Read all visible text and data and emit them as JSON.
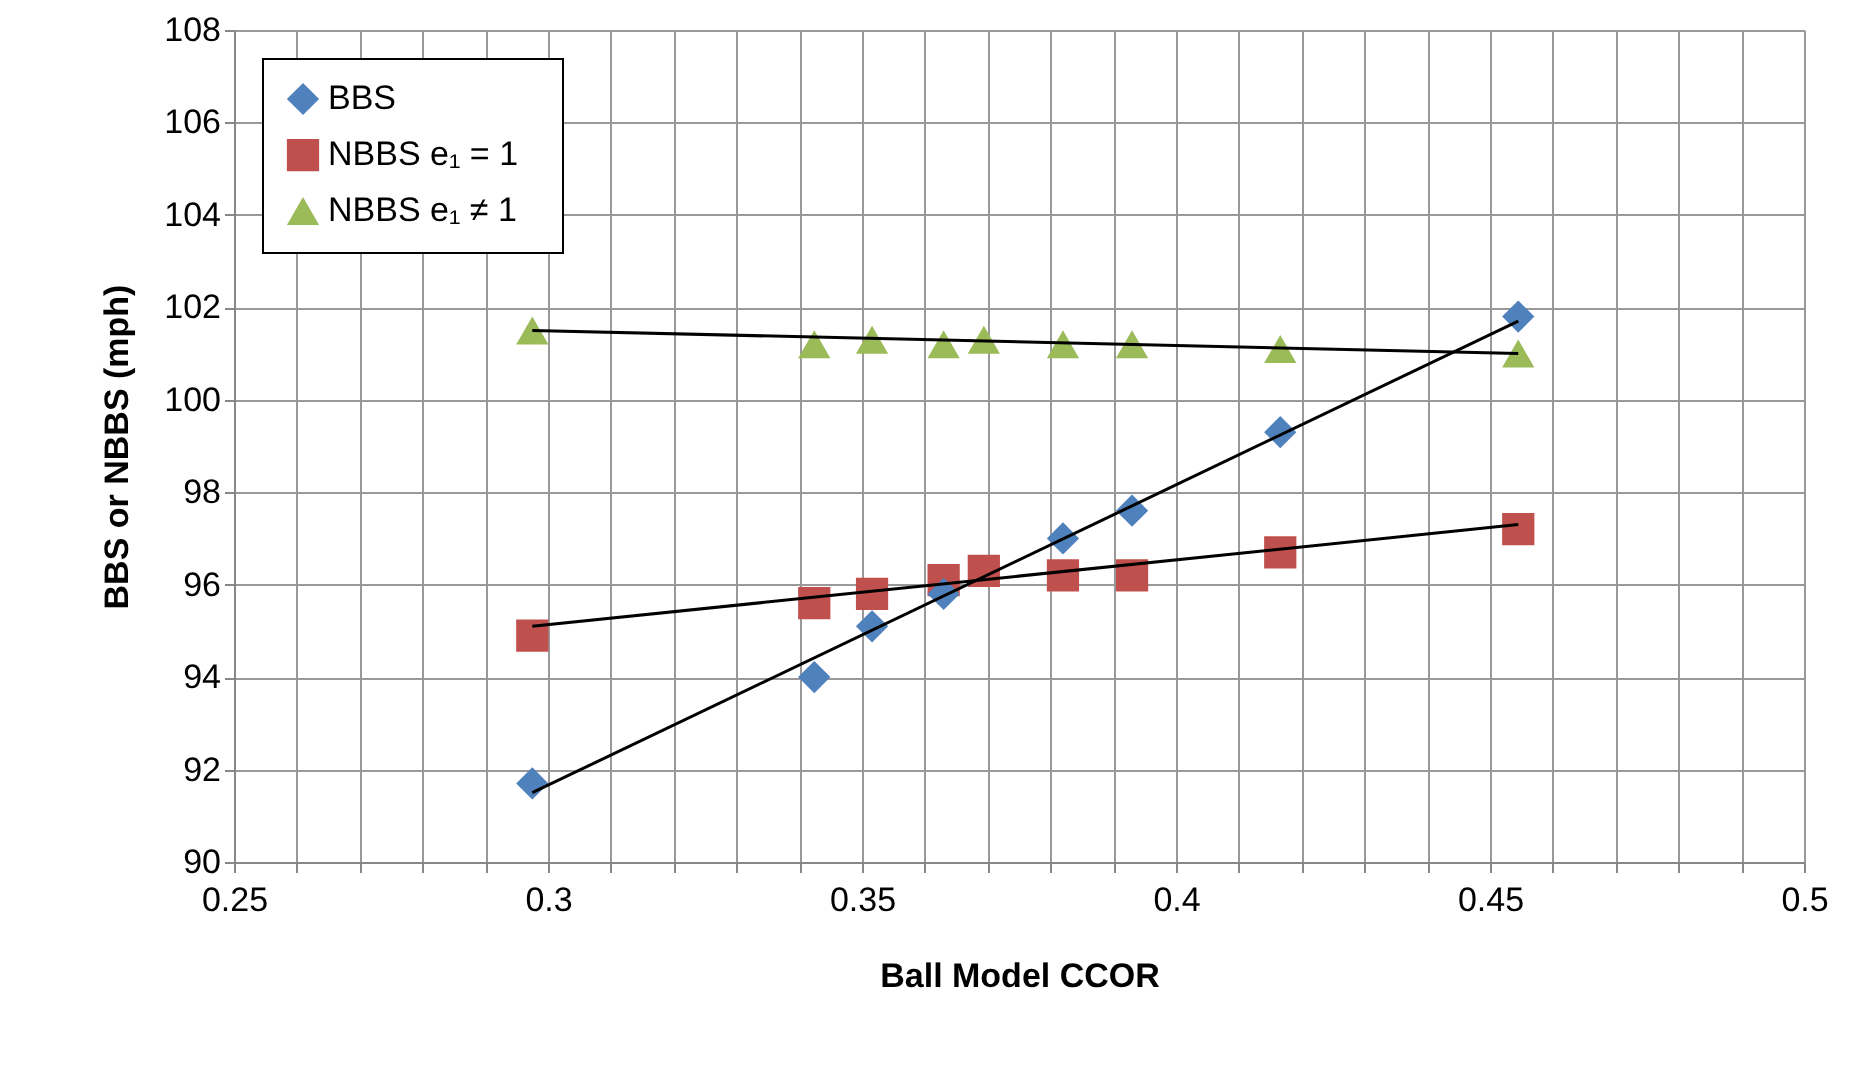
{
  "chart_data": {
    "type": "scatter",
    "xlabel": "Ball Model CCOR",
    "ylabel": "BBS or NBBS (mph)",
    "xlim": [
      0.25,
      0.5
    ],
    "ylim": [
      90,
      108
    ],
    "xticks": [
      0.25,
      {
        "value": 0.26,
        "label": null
      },
      {
        "value": 0.27,
        "label": null
      },
      {
        "value": 0.28,
        "label": null
      },
      {
        "value": 0.29,
        "label": null
      },
      0.3,
      {
        "value": 0.31,
        "label": null
      },
      {
        "value": 0.32,
        "label": null
      },
      {
        "value": 0.33,
        "label": null
      },
      {
        "value": 0.34,
        "label": null
      },
      0.35,
      {
        "value": 0.36,
        "label": null
      },
      {
        "value": 0.37,
        "label": null
      },
      {
        "value": 0.38,
        "label": null
      },
      {
        "value": 0.39,
        "label": null
      },
      0.4,
      {
        "value": 0.41,
        "label": null
      },
      {
        "value": 0.42,
        "label": null
      },
      {
        "value": 0.43,
        "label": null
      },
      {
        "value": 0.44,
        "label": null
      },
      0.45,
      {
        "value": 0.46,
        "label": null
      },
      {
        "value": 0.47,
        "label": null
      },
      {
        "value": 0.48,
        "label": null
      },
      {
        "value": 0.49,
        "label": null
      },
      0.5
    ],
    "yticks": [
      90,
      92,
      94,
      96,
      98,
      100,
      102,
      104,
      106,
      108
    ],
    "grid": true,
    "legend": "top left",
    "series": [
      {
        "name": "BBS",
        "color": "#4f81bd",
        "marker": "diamond",
        "x": [
          0.2975,
          0.3424,
          0.3516,
          0.363,
          0.382,
          0.393,
          0.4166,
          0.4545
        ],
        "values": [
          91.7,
          94.0,
          95.1,
          95.8,
          97.0,
          97.6,
          99.3,
          101.8
        ]
      },
      {
        "name": "NBBS   e₁ = 1",
        "color": "#c0504d",
        "marker": "square",
        "x": [
          0.2975,
          0.3424,
          0.3516,
          0.363,
          0.3694,
          0.382,
          0.393,
          0.4166,
          0.4545
        ],
        "values": [
          94.9,
          95.6,
          95.8,
          96.1,
          96.3,
          96.2,
          96.2,
          96.7,
          97.2
        ]
      },
      {
        "name": "NBBS   e₁ ≠ 1",
        "color": "#9bbb59",
        "marker": "triangle",
        "x": [
          0.2975,
          0.3424,
          0.3516,
          0.363,
          0.3694,
          0.382,
          0.393,
          0.4166,
          0.4545
        ],
        "values": [
          101.5,
          101.2,
          101.3,
          101.2,
          101.3,
          101.2,
          101.2,
          101.1,
          101.0
        ]
      },
      {
        "type": "line",
        "color": "#000000",
        "marker": "none",
        "x": [
          0.2975,
          0.4545
        ],
        "values": [
          91.5,
          101.7
        ]
      },
      {
        "type": "line",
        "color": "#000000",
        "marker": "none",
        "x": [
          0.2975,
          0.4545
        ],
        "values": [
          95.1,
          97.3
        ]
      },
      {
        "type": "line",
        "color": "#000000",
        "marker": "none",
        "x": [
          0.2975,
          0.4545
        ],
        "values": [
          101.5,
          101.0
        ]
      }
    ]
  }
}
